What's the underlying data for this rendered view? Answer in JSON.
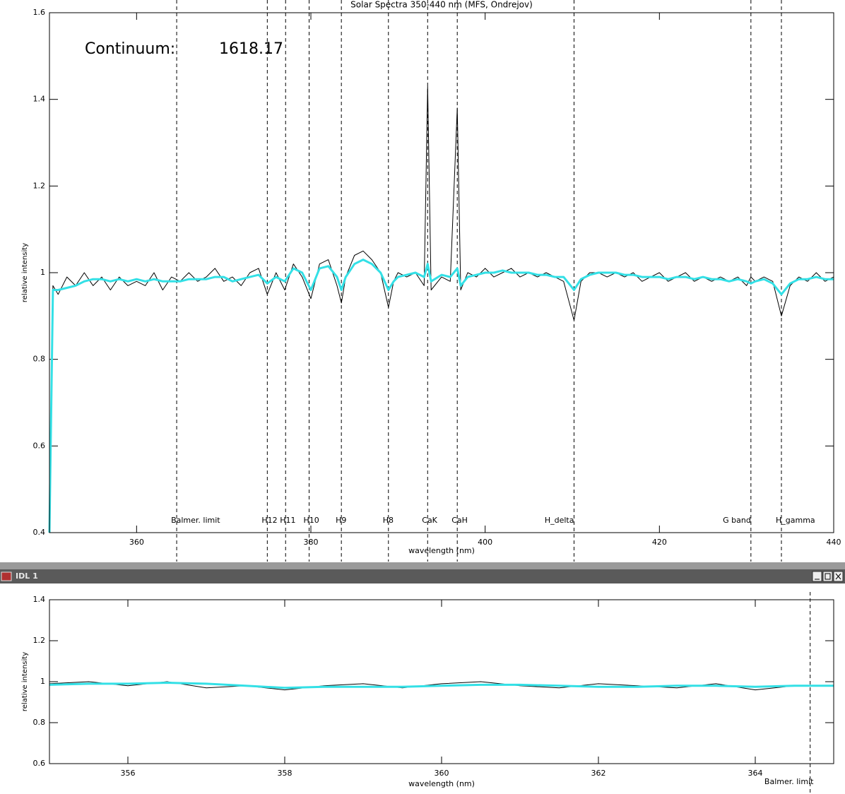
{
  "window": {
    "title": "IDL 1"
  },
  "chart_data": [
    {
      "type": "line",
      "title": "Solar Spectra 350-440 nm (MFS, Ondrejov)",
      "xlabel": "wavelength (nm)",
      "ylabel": "relative intensity",
      "continuum": {
        "label": "Continuum:",
        "value": 1618.17
      },
      "xlim": [
        350,
        440
      ],
      "xticks": [
        360,
        380,
        400,
        420,
        440
      ],
      "ylim": [
        0.4,
        1.6
      ],
      "yticks": [
        0.4,
        0.6,
        0.8,
        1.0,
        1.2,
        1.4,
        1.6
      ],
      "annotations": [
        {
          "label": "Balmer. limit",
          "x": 364.6
        },
        {
          "label": "H12",
          "x": 375.0
        },
        {
          "label": "H11",
          "x": 377.1
        },
        {
          "label": "H10",
          "x": 379.8
        },
        {
          "label": "H9",
          "x": 383.5
        },
        {
          "label": "H8",
          "x": 388.9
        },
        {
          "label": "CaK",
          "x": 393.4
        },
        {
          "label": "CaH",
          "x": 396.8
        },
        {
          "label": "H_delta",
          "x": 410.2
        },
        {
          "label": "G band",
          "x": 430.5
        },
        {
          "label": "H_gamma",
          "x": 434.0
        }
      ],
      "x": [
        350,
        350.4,
        351,
        352,
        353,
        354,
        355,
        356,
        357,
        358,
        359,
        360,
        361,
        362,
        363,
        364,
        365,
        366,
        367,
        368,
        369,
        370,
        371,
        372,
        373,
        374,
        375,
        376,
        377,
        378,
        379,
        380,
        381,
        382,
        383,
        383.5,
        384,
        385,
        386,
        387,
        388,
        388.9,
        389.5,
        390,
        391,
        392,
        393,
        393.4,
        393.8,
        395,
        396,
        396.8,
        397.2,
        398,
        399,
        400,
        401,
        402,
        403,
        404,
        405,
        406,
        407,
        408,
        409,
        410.2,
        411,
        412,
        413,
        414,
        415,
        416,
        417,
        418,
        419,
        420,
        421,
        422,
        423,
        424,
        425,
        426,
        427,
        428,
        429,
        430,
        430.5,
        431,
        432,
        433,
        434,
        435,
        436,
        437,
        438,
        439,
        440
      ],
      "series": [
        {
          "color": "#000000",
          "values": [
            0.4,
            0.97,
            0.95,
            0.99,
            0.97,
            1.0,
            0.97,
            0.99,
            0.96,
            0.99,
            0.97,
            0.98,
            0.97,
            1.0,
            0.96,
            0.99,
            0.98,
            1.0,
            0.98,
            0.99,
            1.01,
            0.98,
            0.99,
            0.97,
            1.0,
            1.01,
            0.95,
            1.0,
            0.96,
            1.02,
            0.99,
            0.94,
            1.02,
            1.03,
            0.97,
            0.93,
            0.99,
            1.04,
            1.05,
            1.03,
            1.0,
            0.92,
            0.98,
            1.0,
            0.99,
            1.0,
            0.97,
            1.43,
            0.96,
            0.99,
            0.98,
            1.38,
            0.96,
            1.0,
            0.99,
            1.01,
            0.99,
            1.0,
            1.01,
            0.99,
            1.0,
            0.99,
            1.0,
            0.99,
            0.98,
            0.89,
            0.98,
            1.0,
            1.0,
            0.99,
            1.0,
            0.99,
            1.0,
            0.98,
            0.99,
            1.0,
            0.98,
            0.99,
            1.0,
            0.98,
            0.99,
            0.98,
            0.99,
            0.98,
            0.99,
            0.97,
            0.99,
            0.98,
            0.99,
            0.98,
            0.9,
            0.97,
            0.99,
            0.98,
            1.0,
            0.98,
            0.99
          ]
        },
        {
          "color": "#33e0e6",
          "values": [
            0.4,
            0.96,
            0.96,
            0.965,
            0.97,
            0.98,
            0.985,
            0.985,
            0.98,
            0.985,
            0.98,
            0.985,
            0.98,
            0.985,
            0.98,
            0.98,
            0.98,
            0.985,
            0.985,
            0.985,
            0.99,
            0.99,
            0.98,
            0.985,
            0.99,
            0.995,
            0.975,
            0.99,
            0.98,
            1.01,
            1.0,
            0.96,
            1.01,
            1.015,
            0.99,
            0.96,
            0.99,
            1.02,
            1.03,
            1.02,
            1.0,
            0.96,
            0.98,
            0.99,
            0.995,
            1.0,
            0.99,
            1.02,
            0.98,
            0.995,
            0.99,
            1.01,
            0.97,
            0.99,
            0.995,
            1.0,
            1.0,
            1.005,
            1.0,
            1.0,
            1.0,
            0.995,
            0.995,
            0.99,
            0.99,
            0.96,
            0.985,
            0.995,
            1.0,
            1.0,
            1.0,
            0.995,
            0.995,
            0.99,
            0.99,
            0.99,
            0.985,
            0.99,
            0.99,
            0.985,
            0.99,
            0.985,
            0.985,
            0.98,
            0.985,
            0.98,
            0.975,
            0.98,
            0.985,
            0.975,
            0.95,
            0.975,
            0.985,
            0.985,
            0.99,
            0.985,
            0.985
          ]
        }
      ]
    },
    {
      "type": "line",
      "xlabel": "wavelength (nm)",
      "ylabel": "relative intensity",
      "xlim": [
        355,
        365
      ],
      "xticks": [
        356,
        358,
        360,
        362,
        364
      ],
      "ylim": [
        0.6,
        1.4
      ],
      "yticks": [
        0.6,
        0.8,
        1.0,
        1.2,
        1.4
      ],
      "annotations": [
        {
          "label": "Balmer. limit",
          "x": 364.7
        }
      ],
      "x": [
        355,
        355.5,
        356,
        356.5,
        357,
        357.5,
        358,
        358.5,
        359,
        359.5,
        360,
        360.5,
        361,
        361.5,
        362,
        362.5,
        363,
        363.5,
        364,
        364.5,
        365
      ],
      "series": [
        {
          "color": "#000000",
          "values": [
            0.99,
            1.0,
            0.98,
            1.0,
            0.97,
            0.98,
            0.96,
            0.98,
            0.99,
            0.97,
            0.99,
            1.0,
            0.98,
            0.97,
            0.99,
            0.98,
            0.97,
            0.99,
            0.96,
            0.98,
            0.98
          ]
        },
        {
          "color": "#33e0e6",
          "values": [
            0.985,
            0.99,
            0.99,
            0.995,
            0.99,
            0.98,
            0.97,
            0.975,
            0.975,
            0.975,
            0.98,
            0.985,
            0.985,
            0.98,
            0.975,
            0.975,
            0.98,
            0.98,
            0.975,
            0.98,
            0.98
          ]
        }
      ]
    }
  ]
}
